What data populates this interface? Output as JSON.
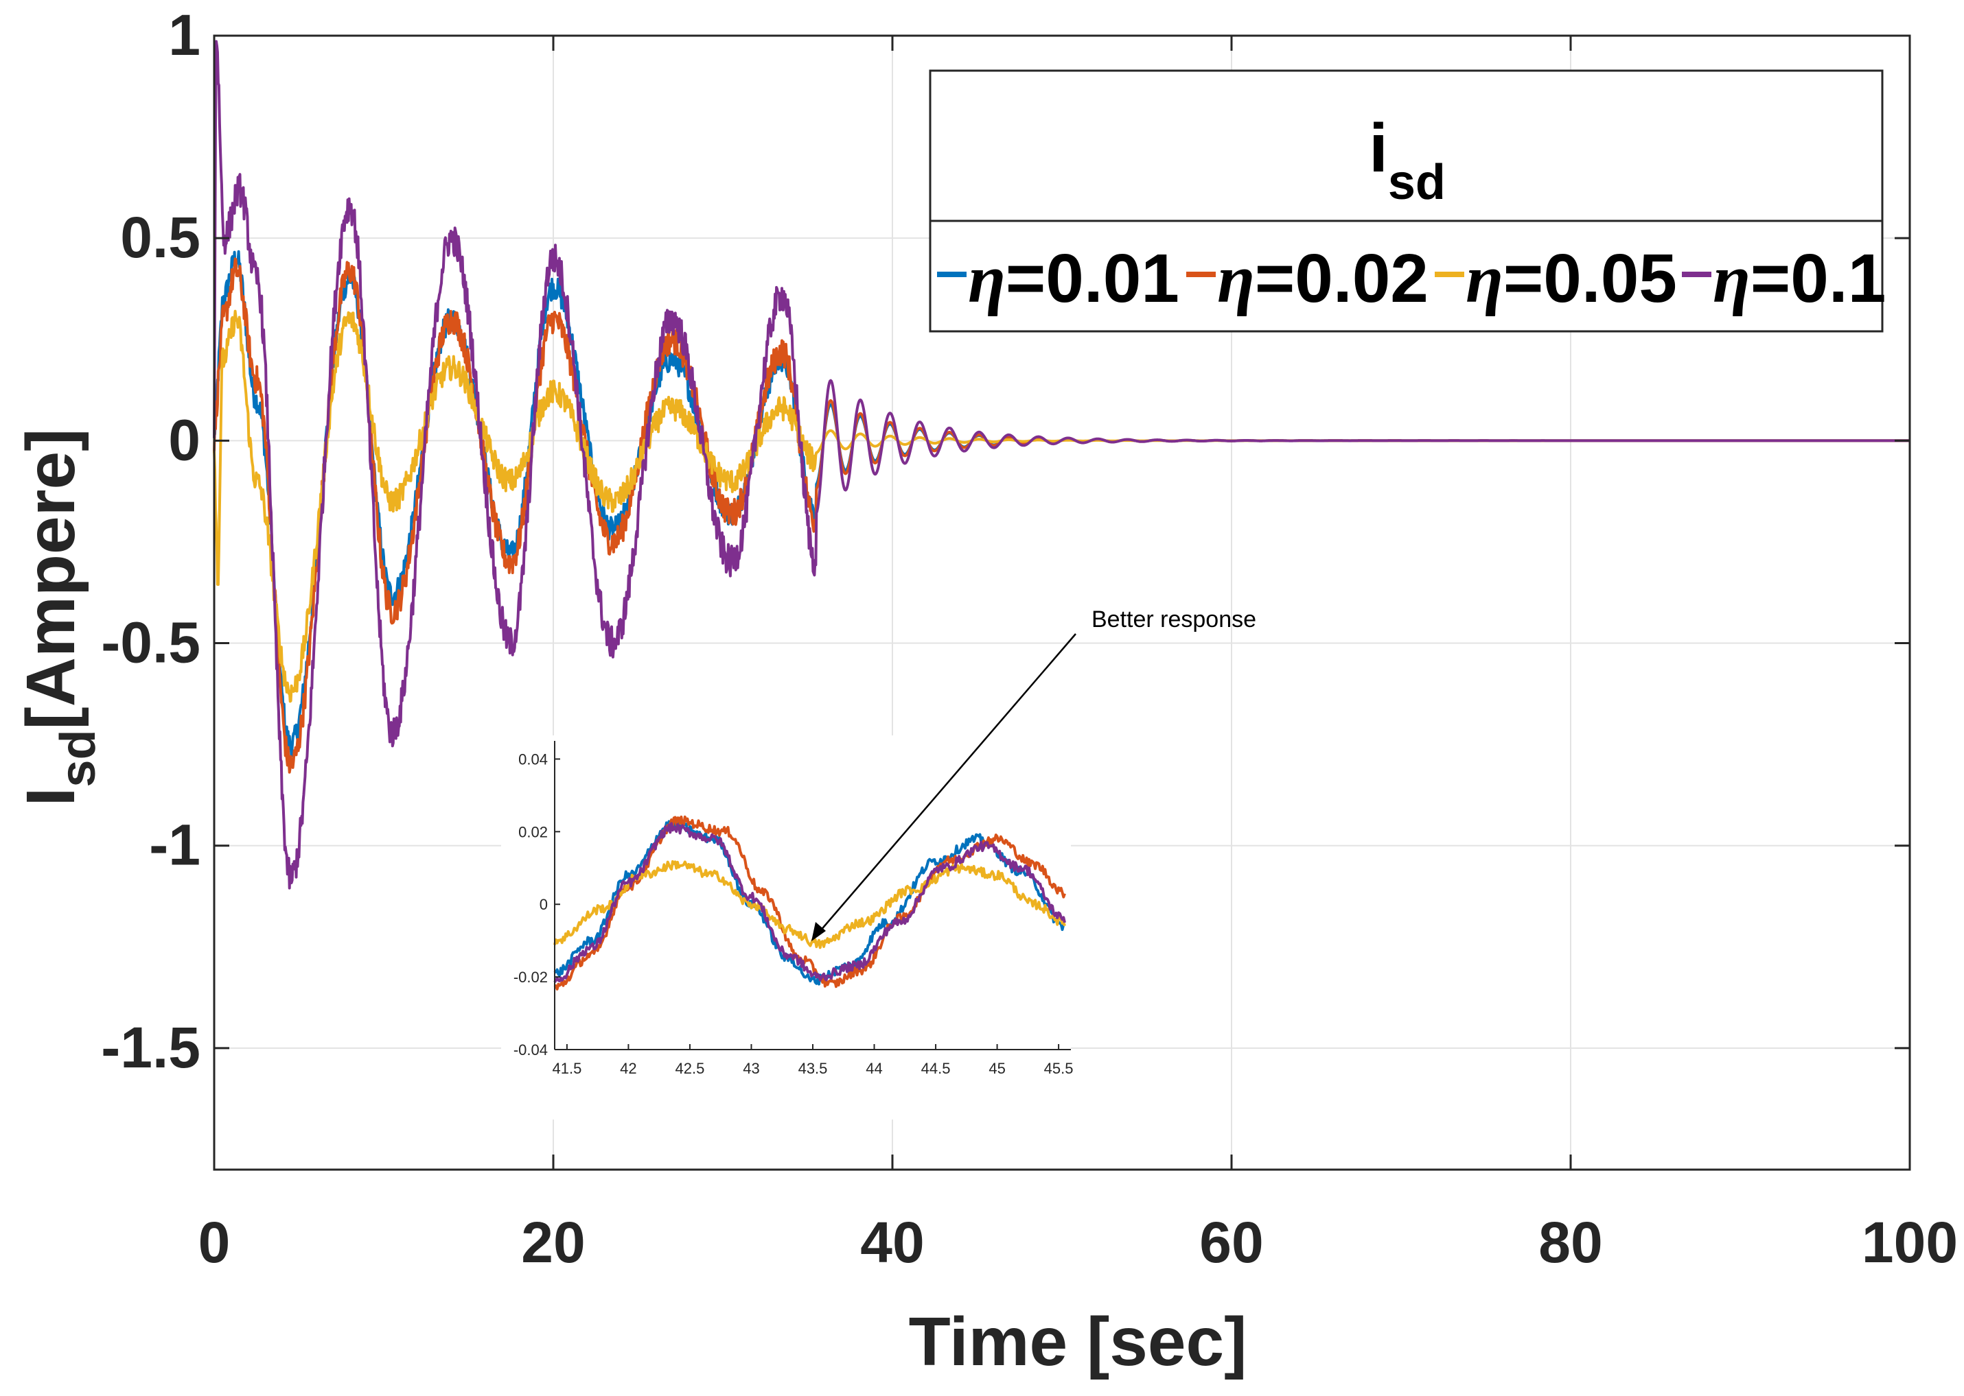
{
  "chart_data": [
    {
      "type": "line",
      "name": "main",
      "xlabel": "Time [sec]",
      "ylabel_main": "I",
      "ylabel_sub": "sd",
      "ylabel_tail": "[Ampere]",
      "xlim": [
        0,
        100
      ],
      "ylim": [
        -1.8,
        1
      ],
      "xticks": [
        0,
        20,
        40,
        60,
        80,
        100
      ],
      "xtick_labels": [
        "0",
        "20",
        "40",
        "60",
        "80",
        "100"
      ],
      "yticks": [
        1,
        0.5,
        0,
        -0.5,
        -1,
        -1.5
      ],
      "ytick_labels": [
        "1",
        "0.5",
        "0",
        "-0.5",
        "-1",
        "-1.5"
      ],
      "grid": true,
      "legend": {
        "title_main": "i",
        "title_sub": "sd",
        "placement": "top-right",
        "symbol": "η",
        "entries": [
          "=0.01",
          "=0.02",
          "=0.05",
          "=0.1"
        ]
      },
      "series": [
        {
          "name": "η=0.01",
          "color": "#0072BD",
          "peaks": [
            [
              0.5,
              0.35
            ],
            [
              1.3,
              0.45
            ],
            [
              2.5,
              0.1
            ],
            [
              4.5,
              -0.75
            ],
            [
              8,
              0.4
            ],
            [
              10.5,
              -0.38
            ],
            [
              14,
              0.3
            ],
            [
              17.5,
              -0.28
            ],
            [
              20,
              0.38
            ],
            [
              23.5,
              -0.22
            ],
            [
              27,
              0.2
            ],
            [
              30.5,
              -0.18
            ],
            [
              33.5,
              0.2
            ],
            [
              35.5,
              -0.18
            ]
          ],
          "noise": 0.03
        },
        {
          "name": "η=0.02",
          "color": "#D95319",
          "peaks": [
            [
              0.5,
              0.3
            ],
            [
              1.3,
              0.42
            ],
            [
              2.5,
              0.15
            ],
            [
              4.5,
              -0.8
            ],
            [
              8,
              0.42
            ],
            [
              10.5,
              -0.42
            ],
            [
              14,
              0.3
            ],
            [
              17.5,
              -0.3
            ],
            [
              20,
              0.3
            ],
            [
              23.5,
              -0.25
            ],
            [
              27,
              0.25
            ],
            [
              30.5,
              -0.18
            ],
            [
              33.5,
              0.22
            ],
            [
              35.5,
              -0.2
            ]
          ],
          "noise": 0.035
        },
        {
          "name": "η=0.05",
          "color": "#EDB120",
          "peaks": [
            [
              0.2,
              -0.35
            ],
            [
              0.5,
              0.2
            ],
            [
              1.3,
              0.3
            ],
            [
              2.5,
              -0.1
            ],
            [
              4.5,
              -0.62
            ],
            [
              8,
              0.3
            ],
            [
              10.5,
              -0.15
            ],
            [
              14,
              0.18
            ],
            [
              17.5,
              -0.1
            ],
            [
              20,
              0.12
            ],
            [
              23.5,
              -0.15
            ],
            [
              27,
              0.08
            ],
            [
              30.5,
              -0.1
            ],
            [
              33.5,
              0.08
            ],
            [
              35.5,
              -0.05
            ]
          ],
          "noise": 0.03
        },
        {
          "name": "η=0.1",
          "color": "#7E2F8E",
          "peaks": [
            [
              0.1,
              1.0
            ],
            [
              0.6,
              0.5
            ],
            [
              1.5,
              0.62
            ],
            [
              2.5,
              0.4
            ],
            [
              4.5,
              -1.08
            ],
            [
              8,
              0.58
            ],
            [
              10.5,
              -0.72
            ],
            [
              14,
              0.5
            ],
            [
              17.5,
              -0.5
            ],
            [
              20,
              0.45
            ],
            [
              23.5,
              -0.5
            ],
            [
              27,
              0.3
            ],
            [
              30.5,
              -0.3
            ],
            [
              33.5,
              0.36
            ],
            [
              35.5,
              -0.3
            ]
          ],
          "noise": 0.04
        }
      ]
    },
    {
      "type": "line",
      "name": "inset",
      "xlim": [
        41.4,
        45.6
      ],
      "ylim": [
        -0.04,
        0.045
      ],
      "xticks": [
        41.5,
        42,
        42.5,
        43,
        43.5,
        44,
        44.5,
        45,
        45.5
      ],
      "xtick_labels": [
        "41.5",
        "42",
        "42.5",
        "43",
        "43.5",
        "44",
        "44.5",
        "45",
        "45.5"
      ],
      "yticks": [
        0.04,
        0.02,
        0,
        -0.02,
        -0.04
      ],
      "ytick_labels": [
        "0.04",
        "0.02",
        "0",
        "-0.02",
        "-0.04"
      ],
      "series": [
        {
          "name": "η=0.01",
          "color": "#0072BD",
          "x": [
            41.4,
            41.7,
            42.0,
            42.35,
            42.7,
            43.0,
            43.3,
            43.5,
            43.8,
            44.1,
            44.5,
            44.85,
            45.2,
            45.55
          ],
          "y": [
            -0.019,
            -0.01,
            0.008,
            0.022,
            0.018,
            0.0,
            -0.015,
            -0.021,
            -0.017,
            -0.005,
            0.012,
            0.018,
            0.009,
            -0.006
          ]
        },
        {
          "name": "η=0.02",
          "color": "#D95319",
          "x": [
            41.4,
            41.7,
            42.0,
            42.4,
            42.8,
            43.1,
            43.4,
            43.65,
            43.9,
            44.2,
            44.6,
            45.0,
            45.3,
            45.55
          ],
          "y": [
            -0.023,
            -0.014,
            0.005,
            0.023,
            0.02,
            0.003,
            -0.015,
            -0.022,
            -0.018,
            -0.004,
            0.012,
            0.018,
            0.011,
            0.003
          ]
        },
        {
          "name": "η=0.05",
          "color": "#EDB120",
          "x": [
            41.4,
            41.8,
            42.1,
            42.4,
            42.7,
            43.0,
            43.3,
            43.55,
            43.9,
            44.3,
            44.7,
            45.0,
            45.3,
            45.55
          ],
          "y": [
            -0.01,
            -0.001,
            0.008,
            0.011,
            0.008,
            0.0,
            -0.007,
            -0.011,
            -0.005,
            0.004,
            0.01,
            0.008,
            0.0,
            -0.005
          ]
        },
        {
          "name": "η=0.1",
          "color": "#7E2F8E",
          "x": [
            41.4,
            41.7,
            42.0,
            42.35,
            42.7,
            43.0,
            43.3,
            43.55,
            43.85,
            44.2,
            44.55,
            44.9,
            45.2,
            45.55
          ],
          "y": [
            -0.021,
            -0.012,
            0.006,
            0.021,
            0.018,
            0.002,
            -0.014,
            -0.02,
            -0.017,
            -0.005,
            0.01,
            0.016,
            0.01,
            -0.004
          ]
        }
      ]
    }
  ],
  "annotation": {
    "text": "Better response"
  }
}
